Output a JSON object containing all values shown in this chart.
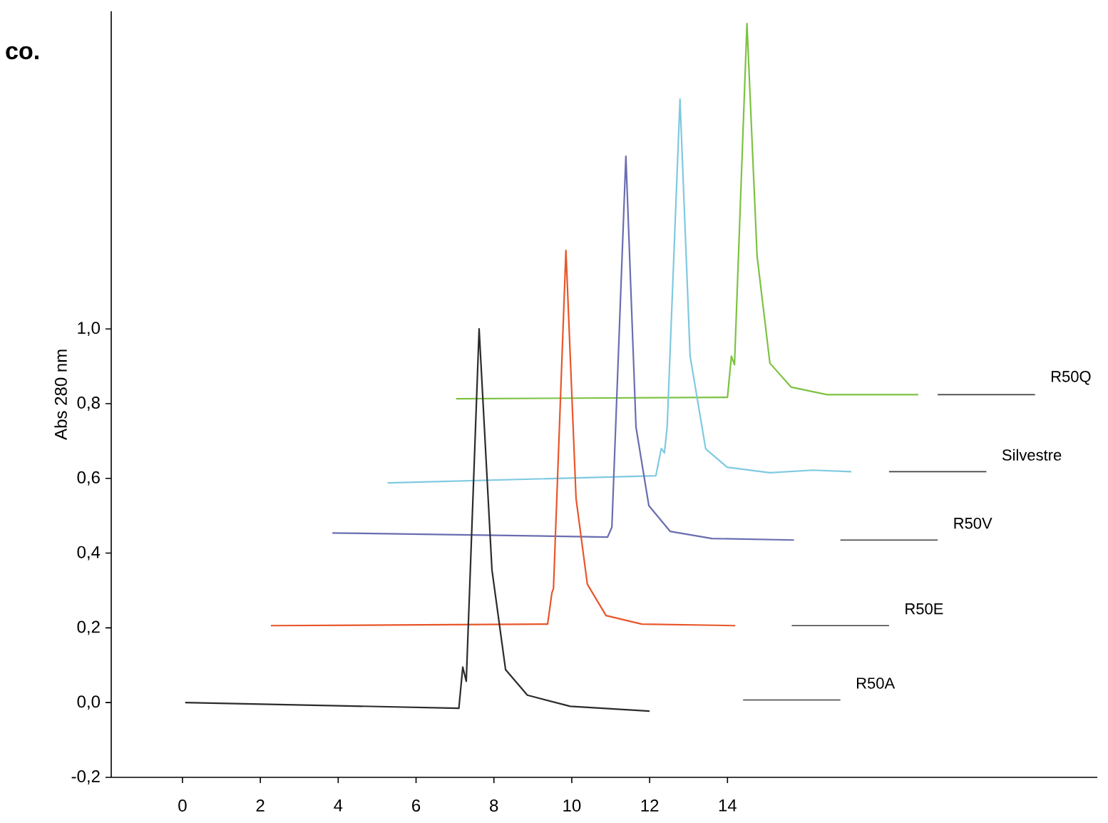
{
  "chart_data": {
    "type": "line",
    "ylabel": "Abs 280 nm",
    "annotations": [
      "co."
    ],
    "xlim": [
      -1.83,
      23.5
    ],
    "ylim": [
      -0.2,
      1.85
    ],
    "xticks": [
      0,
      2,
      4,
      6,
      8,
      10,
      12,
      14
    ],
    "yticks": [
      {
        "value": -0.2,
        "label": "-0,2"
      },
      {
        "value": 0.0,
        "label": "0,0"
      },
      {
        "value": 0.2,
        "label": "0,2"
      },
      {
        "value": 0.4,
        "label": "0,4"
      },
      {
        "value": 0.6,
        "label": "0,6"
      },
      {
        "value": 0.8,
        "label": "0,8"
      },
      {
        "value": 1.0,
        "label": "1,0"
      }
    ],
    "legend": false,
    "marker": "none",
    "line_style": "solid",
    "grid": false,
    "series": [
      {
        "name": "R50A",
        "color": "#2b2b2b",
        "x": [
          0.07,
          7.1,
          7.2,
          7.29,
          7.62,
          7.95,
          8.3,
          8.86,
          9.96,
          12.0
        ],
        "values": [
          0.0,
          -0.015,
          0.095,
          0.057,
          1.0,
          0.355,
          0.088,
          0.02,
          -0.01,
          -0.023
        ]
      },
      {
        "name": "R50E",
        "color": "#e8562a",
        "x": [
          2.27,
          9.38,
          9.49,
          9.53,
          9.85,
          10.11,
          10.4,
          10.88,
          11.8,
          14.2
        ],
        "values": [
          0.206,
          0.21,
          0.294,
          0.305,
          1.21,
          0.546,
          0.317,
          0.233,
          0.21,
          0.206
        ]
      },
      {
        "name": "R50V",
        "color": "#6a6db0",
        "x": [
          3.85,
          10.92,
          11.03,
          11.39,
          11.65,
          11.98,
          12.53,
          13.6,
          15.71
        ],
        "values": [
          0.454,
          0.443,
          0.469,
          1.462,
          0.737,
          0.527,
          0.458,
          0.439,
          0.435
        ]
      },
      {
        "name": "Silvestre",
        "color": "#7fc9e1",
        "x": [
          5.27,
          12.16,
          12.3,
          12.38,
          12.45,
          12.78,
          13.04,
          13.44,
          13.99,
          15.09,
          16.19,
          17.18
        ],
        "values": [
          0.588,
          0.607,
          0.68,
          0.668,
          0.737,
          1.615,
          0.927,
          0.679,
          0.63,
          0.615,
          0.622,
          0.618
        ]
      },
      {
        "name": "R50Q",
        "color": "#7dc242",
        "x": [
          7.03,
          14.0,
          14.1,
          14.18,
          14.5,
          14.76,
          15.09,
          15.64,
          16.56,
          18.9
        ],
        "values": [
          0.813,
          0.817,
          0.927,
          0.904,
          1.817,
          1.195,
          0.908,
          0.844,
          0.824,
          0.824
        ]
      }
    ]
  }
}
